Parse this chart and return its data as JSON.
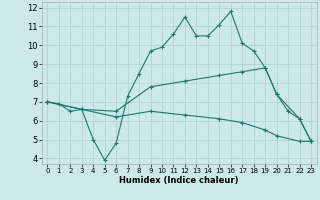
{
  "xlabel": "Humidex (Indice chaleur)",
  "background_color": "#cde8e8",
  "grid_color": "#aacfcf",
  "line_color": "#1a7a6a",
  "xlim": [
    -0.5,
    23.5
  ],
  "ylim": [
    3.7,
    12.3
  ],
  "xticks": [
    0,
    1,
    2,
    3,
    4,
    5,
    6,
    7,
    8,
    9,
    10,
    11,
    12,
    13,
    14,
    15,
    16,
    17,
    18,
    19,
    20,
    21,
    22,
    23
  ],
  "yticks": [
    4,
    5,
    6,
    7,
    8,
    9,
    10,
    11,
    12
  ],
  "line1_x": [
    0,
    1,
    2,
    3,
    4,
    5,
    6,
    7,
    8,
    9,
    10,
    11,
    12,
    13,
    14,
    15,
    16,
    17,
    18,
    19,
    20,
    21,
    22,
    23
  ],
  "line1_y": [
    7.0,
    6.9,
    6.5,
    6.6,
    5.0,
    3.9,
    4.8,
    7.3,
    8.5,
    9.7,
    9.9,
    10.6,
    11.5,
    10.5,
    10.5,
    11.1,
    11.8,
    10.1,
    9.7,
    8.8,
    7.4,
    6.5,
    6.1,
    4.9
  ],
  "line1_markers": [
    0,
    1,
    2,
    3,
    4,
    5,
    6,
    7,
    8,
    9,
    10,
    11,
    12,
    13,
    14,
    15,
    16,
    17,
    18,
    19,
    20,
    21,
    22,
    23
  ],
  "line2_x": [
    0,
    3,
    6,
    9,
    12,
    15,
    17,
    19,
    20,
    22,
    23
  ],
  "line2_y": [
    7.0,
    6.6,
    6.5,
    7.8,
    8.1,
    8.4,
    8.6,
    8.8,
    7.4,
    6.1,
    4.9
  ],
  "line3_x": [
    0,
    3,
    6,
    9,
    12,
    15,
    17,
    19,
    20,
    22,
    23
  ],
  "line3_y": [
    7.0,
    6.6,
    6.2,
    6.5,
    6.3,
    6.1,
    5.9,
    5.5,
    5.2,
    4.9,
    4.9
  ]
}
